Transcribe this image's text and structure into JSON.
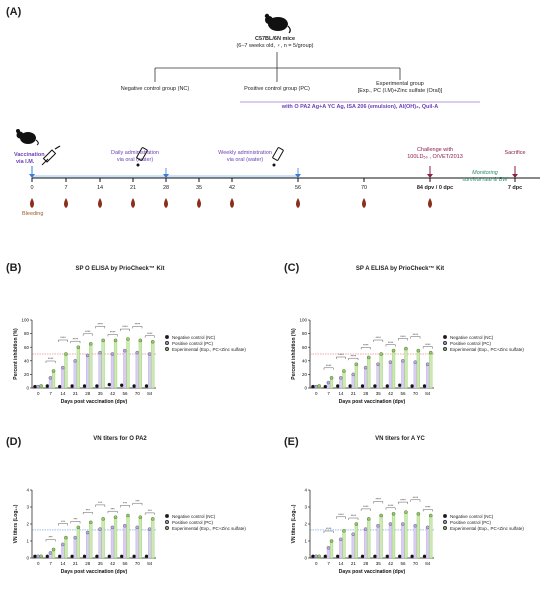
{
  "panels": {
    "A": "(A)",
    "B": "(B)",
    "C": "(C)",
    "D": "(D)",
    "E": "(E)"
  },
  "schematic": {
    "mice_title": "C57BL/6N mice",
    "mice_subtitle": "(6–7 weeks old, ♀, n = 5/group)",
    "groups": {
      "nc": "Negative control group (NC)",
      "pc": "Positive control group (PC)",
      "exp_line1": "Experimental group",
      "exp_line2": "[Exp., PC (I.M)+Zinc sulfate (Oral)]"
    },
    "vaccine": "with O PA2 Ag+A YC Ag, ISA 206 (emulsion), Al(OH)₃, Quil-A",
    "vaccination_line1": "Vaccination",
    "vaccination_line2": "via I.M.",
    "daily_line1": "Daily administration",
    "daily_line2": "via oral (water)",
    "weekly_line1": "Weekly administration",
    "weekly_line2": "via oral (water)",
    "challenge_line1": "Challenge with",
    "challenge_line2": "100LD₅₀ , O/VET/2013",
    "sacrifice": "Sacrifice",
    "monitoring_line1": "Monitoring",
    "monitoring_line2": "survival rate & BW",
    "bleeding": "Bleeding",
    "timeline_ticks": [
      "0",
      "7",
      "14",
      "21",
      "28",
      "35",
      "42",
      "56",
      "70",
      "84 dpv / 0 dpc",
      "7 dpc"
    ]
  },
  "legend": {
    "nc": "Negative control (NC)",
    "pc": "Positive control (PC)",
    "exp": "Experimental (Exp., PC+Zinc sulfate)"
  },
  "colors": {
    "nc": "#111111",
    "pc": "#b9a6e6",
    "exp": "#8fcf5a",
    "bar_pc": "#d9cdf2",
    "bar_exp": "#cfe8b8",
    "sig": "#333333",
    "threshold": "#d9534f",
    "vn_threshold": "#3a7bd5"
  },
  "chart_data": [
    {
      "id": "B",
      "type": "bar",
      "title": "SP O ELISA by PrioCheck™ Kit",
      "xlabel": "Days post vaccination (dpv)",
      "ylabel": "Percent inhibition (%)",
      "categories": [
        "0",
        "7",
        "14",
        "21",
        "28",
        "35",
        "42",
        "56",
        "70",
        "84"
      ],
      "yticks": [
        "0",
        "20",
        "40",
        "60",
        "80",
        "100"
      ],
      "ylim": [
        0,
        100
      ],
      "threshold": 50,
      "series": [
        {
          "name": "Negative control (NC)",
          "values": [
            2,
            3,
            2,
            3,
            3,
            3,
            5,
            4,
            3,
            3
          ]
        },
        {
          "name": "Positive control (PC)",
          "values": [
            2,
            15,
            30,
            40,
            48,
            52,
            50,
            55,
            52,
            50
          ]
        },
        {
          "name": "Experimental (Exp., PC+Zinc sulfate)",
          "values": [
            3,
            25,
            50,
            60,
            65,
            70,
            70,
            72,
            70,
            68
          ]
        }
      ],
      "significance": "****"
    },
    {
      "id": "C",
      "type": "bar",
      "title": "SP A ELISA by PrioCheck™ Kit",
      "xlabel": "Days post vaccination (dpv)",
      "ylabel": "Percent inhibition (%)",
      "categories": [
        "0",
        "7",
        "14",
        "21",
        "28",
        "35",
        "42",
        "56",
        "70",
        "84"
      ],
      "yticks": [
        "0",
        "20",
        "40",
        "60",
        "80",
        "100"
      ],
      "ylim": [
        0,
        100
      ],
      "threshold": 50,
      "series": [
        {
          "name": "Negative control (NC)",
          "values": [
            2,
            2,
            3,
            3,
            3,
            3,
            3,
            4,
            3,
            3
          ]
        },
        {
          "name": "Positive control (PC)",
          "values": [
            2,
            8,
            15,
            20,
            30,
            35,
            38,
            40,
            38,
            35
          ]
        },
        {
          "name": "Experimental (Exp., PC+Zinc sulfate)",
          "values": [
            3,
            15,
            25,
            35,
            45,
            50,
            55,
            58,
            55,
            52
          ]
        }
      ],
      "significance": "****"
    },
    {
      "id": "D",
      "type": "bar",
      "title": "VN titers for O PA2",
      "xlabel": "Days post vaccination (dpv)",
      "ylabel": "VN titers (Log₁₀)",
      "categories": [
        "0",
        "7",
        "14",
        "21",
        "28",
        "35",
        "42",
        "56",
        "70",
        "84"
      ],
      "yticks": [
        "0",
        "1",
        "2",
        "3",
        "4"
      ],
      "ylim": [
        0,
        4
      ],
      "threshold": 1.65,
      "series": [
        {
          "name": "Negative control (NC)",
          "values": [
            0.1,
            0.1,
            0.1,
            0.1,
            0.1,
            0.1,
            0.1,
            0.1,
            0.1,
            0.1
          ]
        },
        {
          "name": "Positive control (PC)",
          "values": [
            0.1,
            0.3,
            0.8,
            1.2,
            1.5,
            1.7,
            1.8,
            1.9,
            1.8,
            1.7
          ]
        },
        {
          "name": "Experimental (Exp., PC+Zinc sulfate)",
          "values": [
            0.1,
            0.5,
            1.2,
            1.8,
            2.1,
            2.3,
            2.4,
            2.5,
            2.4,
            2.3
          ]
        }
      ],
      "significance": "***"
    },
    {
      "id": "E",
      "type": "bar",
      "title": "VN titers for A YC",
      "xlabel": "Days post vaccination (dpv)",
      "ylabel": "VN titers (Log₁₀)",
      "categories": [
        "0",
        "7",
        "14",
        "21",
        "28",
        "35",
        "42",
        "56",
        "70",
        "84"
      ],
      "yticks": [
        "0",
        "1",
        "2",
        "3",
        "4"
      ],
      "ylim": [
        0,
        4
      ],
      "threshold": 1.65,
      "series": [
        {
          "name": "Negative control (NC)",
          "values": [
            0.1,
            0.1,
            0.1,
            0.1,
            0.1,
            0.1,
            0.1,
            0.1,
            0.1,
            0.1
          ]
        },
        {
          "name": "Positive control (PC)",
          "values": [
            0.1,
            0.6,
            1.1,
            1.4,
            1.7,
            1.9,
            2.0,
            2.0,
            1.9,
            1.8
          ]
        },
        {
          "name": "Experimental (Exp., PC+Zinc sulfate)",
          "values": [
            0.1,
            1.0,
            1.6,
            2.0,
            2.3,
            2.5,
            2.6,
            2.7,
            2.6,
            2.5
          ]
        }
      ],
      "significance": "****"
    }
  ]
}
